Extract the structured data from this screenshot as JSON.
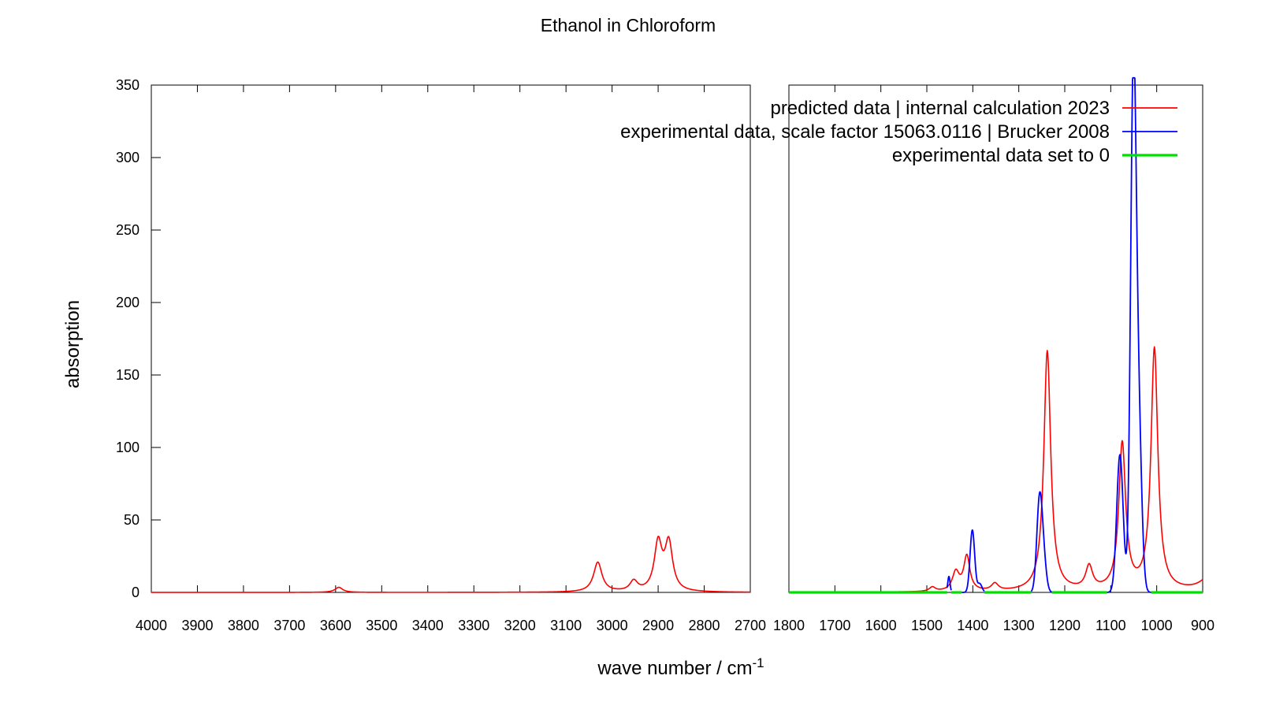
{
  "chart_data": {
    "type": "line",
    "title": "Ethanol in Chloroform",
    "xlabel": "wave number / cm",
    "xlabel_superscript": "-1",
    "ylabel": "absorption",
    "ylim": [
      0,
      350
    ],
    "yticks": [
      "0",
      "50",
      "100",
      "150",
      "200",
      "250",
      "300",
      "350"
    ],
    "x_reversed": true,
    "broken_x_axis": true,
    "panels": [
      {
        "xlim": [
          4000,
          2700
        ],
        "xticks": [
          "4000",
          "3900",
          "3800",
          "3700",
          "3600",
          "3500",
          "3400",
          "3300",
          "3200",
          "3100",
          "3000",
          "2900",
          "2800",
          "2700"
        ]
      },
      {
        "xlim": [
          1800,
          900
        ],
        "xticks": [
          "1800",
          "1700",
          "1600",
          "1500",
          "1400",
          "1300",
          "1200",
          "1100",
          "1000",
          "900"
        ]
      }
    ],
    "grid": false,
    "legend_position": "top-right",
    "series": [
      {
        "name": "predicted data | internal calculation 2023",
        "color": "#ff0000",
        "kind": "lorentzian",
        "baseline": 0,
        "peaks": [
          {
            "x": 3593,
            "h": 3.5,
            "w": 10
          },
          {
            "x": 3031,
            "h": 20.5,
            "w": 11
          },
          {
            "x": 2953,
            "h": 7,
            "w": 10
          },
          {
            "x": 2900,
            "h": 33,
            "w": 10
          },
          {
            "x": 2877,
            "h": 33,
            "w": 10
          },
          {
            "x": 1488,
            "h": 3,
            "w": 8
          },
          {
            "x": 1437,
            "h": 13,
            "w": 9
          },
          {
            "x": 1413,
            "h": 24,
            "w": 8
          },
          {
            "x": 1352,
            "h": 5,
            "w": 9
          },
          {
            "x": 1238,
            "h": 166,
            "w": 9
          },
          {
            "x": 1147,
            "h": 16,
            "w": 9
          },
          {
            "x": 1075,
            "h": 101,
            "w": 9
          },
          {
            "x": 1005,
            "h": 167,
            "w": 9
          },
          {
            "x": 880,
            "h": 12,
            "w": 25
          }
        ]
      },
      {
        "name": "experimental data, scale factor 15063.0116 | Brucker 2008",
        "color": "#0000ff",
        "kind": "gaussian",
        "segments": [
          {
            "x0": 1456,
            "x1": 1447,
            "peaks": [
              {
                "x": 1452,
                "h": 11,
                "w": 2.5
              }
            ]
          },
          {
            "x0": 1424,
            "x1": 1375,
            "peaks": [
              {
                "x": 1401,
                "h": 43,
                "w": 5
              },
              {
                "x": 1385,
                "h": 6,
                "w": 5
              }
            ]
          },
          {
            "x0": 1273,
            "x1": 1228,
            "peaks": [
              {
                "x": 1255,
                "h": 62,
                "w": 6
              },
              {
                "x": 1246,
                "h": 20,
                "w": 6
              }
            ]
          },
          {
            "x0": 1108,
            "x1": 1012,
            "peaks": [
              {
                "x": 1080,
                "h": 95,
                "w": 7
              },
              {
                "x": 1051,
                "h": 340,
                "w": 6
              },
              {
                "x": 1040,
                "h": 120,
                "w": 7
              }
            ]
          }
        ]
      },
      {
        "name": "experimental data set to 0",
        "color": "#00e000",
        "kind": "zero",
        "value": 0,
        "ranges": [
          [
            1800,
            1456
          ],
          [
            1447,
            1424
          ],
          [
            1375,
            1273
          ],
          [
            1228,
            1108
          ],
          [
            1012,
            900
          ]
        ]
      }
    ]
  }
}
